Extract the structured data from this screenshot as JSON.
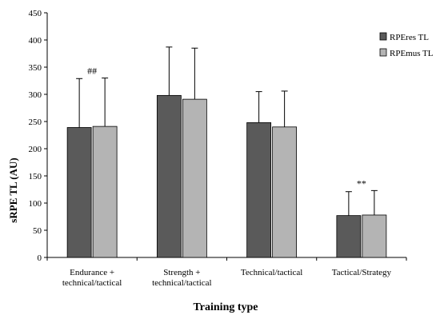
{
  "chart_data": {
    "type": "bar",
    "title": "",
    "xlabel": "Training type",
    "ylabel": "sRPE TL (AU)",
    "ylim": [
      0,
      450
    ],
    "yticks": [
      0,
      50,
      100,
      150,
      200,
      250,
      300,
      350,
      400,
      450
    ],
    "grid": false,
    "legend_position": "right",
    "categories": [
      [
        "Endurance +",
        "technical/tactical"
      ],
      [
        "Strength +",
        "technical/tactical"
      ],
      [
        "Technical/tactical"
      ],
      [
        "Tactical/Strategy"
      ]
    ],
    "series": [
      {
        "name": "RPEres TL",
        "color": "#5a5a5a",
        "values": [
          239,
          298,
          248,
          77
        ],
        "errors": [
          90,
          89,
          57,
          44
        ]
      },
      {
        "name": "RPEmus TL",
        "color": "#b4b4b4",
        "values": [
          241,
          291,
          240,
          78
        ],
        "errors": [
          89,
          94,
          66,
          45
        ]
      }
    ],
    "annotations": [
      "##",
      "",
      "",
      "**"
    ]
  }
}
